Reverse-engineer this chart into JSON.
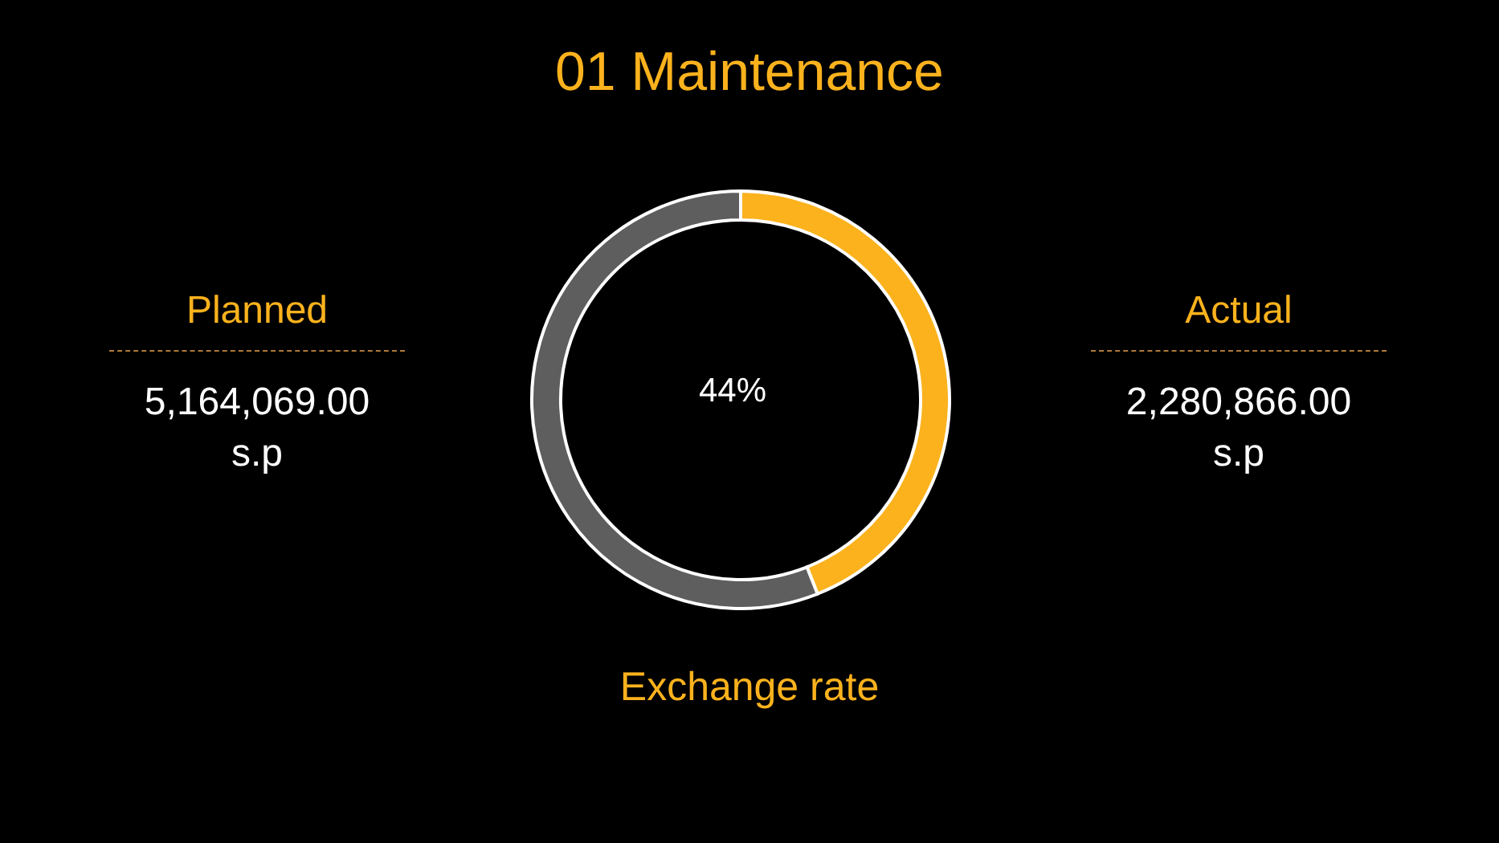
{
  "chart_data": {
    "type": "donut",
    "title": "01 Maintenance",
    "categories": [
      null,
      null
    ],
    "values": [
      44,
      56
    ],
    "colors": [
      "#fbb21d",
      "#5e5e5e"
    ],
    "annotations": [
      "Planned",
      "5,164,069.00\ns.p",
      "Actual",
      "2,280,866.00\ns.p",
      "Exchange rate",
      "44%"
    ]
  }
}
